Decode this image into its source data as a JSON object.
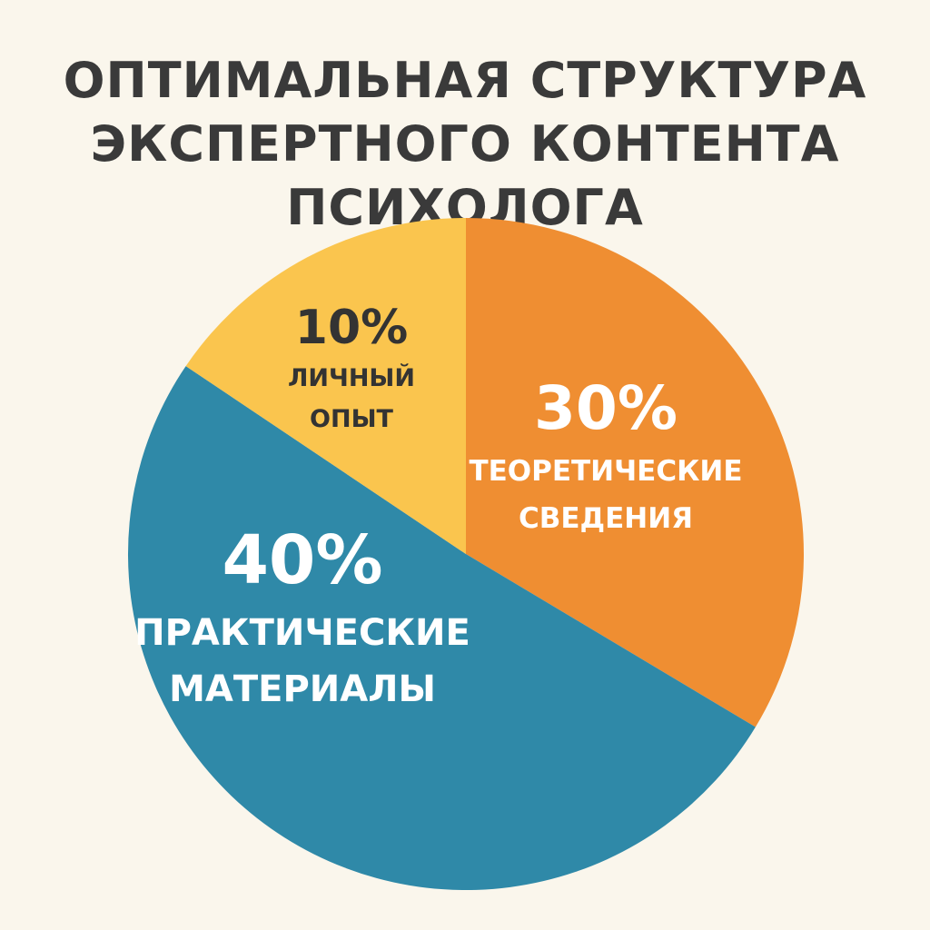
{
  "title_lines": [
    "ОПТИМАЛЬНАЯ СТРУКТУРА",
    "ЭКСПЕРТНОГО КОНТЕНТА",
    "ПСИХОЛОГА"
  ],
  "chart_data": {
    "type": "pie",
    "title": "ОПТИМАЛЬНАЯ СТРУКТУРА ЭКСПЕРТНОГО КОНТЕНТА ПСИХОЛОГА",
    "slices": [
      {
        "value_label": "30%",
        "label_lines": [
          "ТЕОРЕТИЧЕСКИЕ",
          "СВЕДЕНИЯ"
        ],
        "value": 30,
        "color": "#EF8E32",
        "text_color": "#FFFFFF"
      },
      {
        "value_label": "40%",
        "label_lines": [
          "ПРАКТИЧЕСКИЕ",
          "МАТЕРИАЛЫ"
        ],
        "value": 40,
        "color": "#2F89A8",
        "text_color": "#FFFFFF"
      },
      {
        "value_label": "10%",
        "label_lines": [
          "ЛИЧНЫЙ",
          "ОПЫТ"
        ],
        "value": 10,
        "color": "#FAC54E",
        "text_color": "#333333"
      }
    ]
  }
}
